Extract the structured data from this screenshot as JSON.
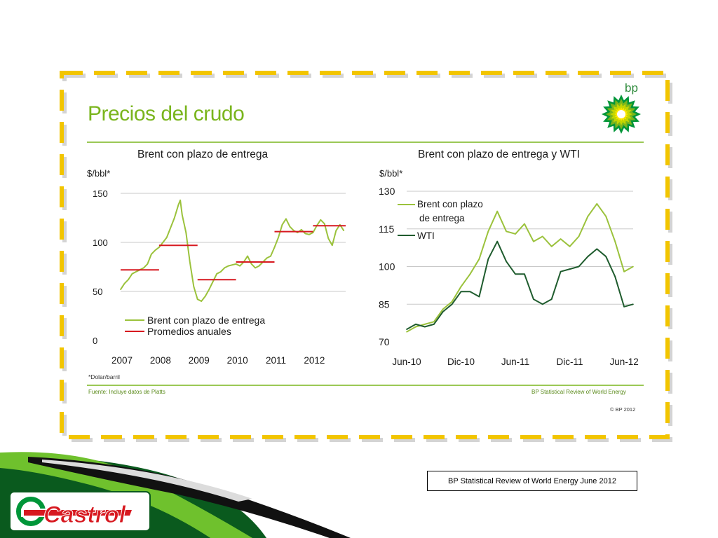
{
  "slide": {
    "title": "Precios del crudo",
    "footnote": "*Dolar/barril",
    "source_left": "Fuente: Incluye datos de Platts",
    "source_right": "BP Statistical Review of World Energy",
    "copyright": "© BP 2012",
    "bp_logo_text": "bp",
    "caption_box": "BP Statistical Review of World Energy June 2012",
    "castrol_logo_text": "Castrol",
    "colors": {
      "accent_green": "#7ab51d",
      "frame_yellow": "#f2c500",
      "castrol_red": "#d71920",
      "castrol_green": "#009639"
    }
  },
  "chart_data": [
    {
      "type": "line",
      "title": "Brent con plazo de entrega",
      "ylabel": "$/bbl*",
      "ylim": [
        0,
        150
      ],
      "yticks": [
        "150",
        "100",
        "50",
        "0"
      ],
      "xticks": [
        "2007",
        "2008",
        "2009",
        "2010",
        "2011",
        "2012"
      ],
      "xlim": [
        2007,
        2012.85
      ],
      "legend_position": "bottom-left",
      "series": [
        {
          "name": "Brent con plazo de entrega",
          "color": "#9bc23c",
          "x": [
            2007.0,
            2007.1,
            2007.2,
            2007.3,
            2007.4,
            2007.5,
            2007.6,
            2007.7,
            2007.8,
            2007.9,
            2008.0,
            2008.1,
            2008.2,
            2008.3,
            2008.4,
            2008.5,
            2008.55,
            2008.6,
            2008.7,
            2008.8,
            2008.9,
            2009.0,
            2009.1,
            2009.2,
            2009.3,
            2009.4,
            2009.5,
            2009.6,
            2009.7,
            2009.8,
            2009.9,
            2010.0,
            2010.1,
            2010.2,
            2010.3,
            2010.4,
            2010.5,
            2010.6,
            2010.7,
            2010.8,
            2010.9,
            2011.0,
            2011.1,
            2011.2,
            2011.3,
            2011.4,
            2011.5,
            2011.6,
            2011.7,
            2011.8,
            2011.9,
            2012.0,
            2012.1,
            2012.2,
            2012.3,
            2012.4,
            2012.5,
            2012.6,
            2012.7,
            2012.8
          ],
          "values": [
            52,
            58,
            62,
            68,
            70,
            72,
            74,
            78,
            88,
            92,
            95,
            100,
            105,
            115,
            125,
            138,
            143,
            128,
            110,
            80,
            55,
            42,
            40,
            45,
            52,
            60,
            68,
            70,
            74,
            76,
            77,
            78,
            76,
            80,
            86,
            78,
            74,
            76,
            80,
            84,
            86,
            95,
            105,
            118,
            124,
            116,
            112,
            110,
            113,
            109,
            108,
            110,
            117,
            123,
            119,
            104,
            97,
            112,
            118,
            112
          ]
        },
        {
          "name": "Promedios anuales",
          "color": "#d71920",
          "type": "step",
          "segments": [
            {
              "year": 2007,
              "value": 72
            },
            {
              "year": 2008,
              "value": 97
            },
            {
              "year": 2009,
              "value": 62
            },
            {
              "year": 2010,
              "value": 80
            },
            {
              "year": 2011,
              "value": 111
            },
            {
              "year": 2012,
              "value": 117
            }
          ]
        }
      ]
    },
    {
      "type": "line",
      "title": "Brent con plazo de entrega y WTI",
      "ylabel": "$/bbl*",
      "ylim": [
        70,
        130
      ],
      "yticks": [
        "130",
        "115",
        "100",
        "85",
        "70"
      ],
      "xticks": [
        "Jun-10",
        "Dic-10",
        "Jun-11",
        "Dic-11",
        "Jun-12"
      ],
      "legend_position": "top-left",
      "series": [
        {
          "name": "Brent con plazo\nde entrega",
          "color": "#9bc23c",
          "x": [
            "2010-06",
            "2010-07",
            "2010-08",
            "2010-09",
            "2010-10",
            "2010-11",
            "2010-12",
            "2011-01",
            "2011-02",
            "2011-03",
            "2011-04",
            "2011-05",
            "2011-06",
            "2011-07",
            "2011-08",
            "2011-09",
            "2011-10",
            "2011-11",
            "2011-12",
            "2012-01",
            "2012-02",
            "2012-03",
            "2012-04",
            "2012-05",
            "2012-06",
            "2012-07"
          ],
          "values": [
            74,
            76,
            77,
            78,
            83,
            86,
            92,
            97,
            103,
            114,
            122,
            114,
            113,
            117,
            110,
            112,
            108,
            111,
            108,
            112,
            120,
            125,
            120,
            110,
            98,
            100
          ]
        },
        {
          "name": "WTI",
          "color": "#1f5c2e",
          "x": [
            "2010-06",
            "2010-07",
            "2010-08",
            "2010-09",
            "2010-10",
            "2010-11",
            "2010-12",
            "2011-01",
            "2011-02",
            "2011-03",
            "2011-04",
            "2011-05",
            "2011-06",
            "2011-07",
            "2011-08",
            "2011-09",
            "2011-10",
            "2011-11",
            "2011-12",
            "2012-01",
            "2012-02",
            "2012-03",
            "2012-04",
            "2012-05",
            "2012-06",
            "2012-07"
          ],
          "values": [
            75,
            77,
            76,
            77,
            82,
            85,
            90,
            90,
            88,
            103,
            110,
            102,
            97,
            97,
            87,
            85,
            87,
            98,
            99,
            100,
            104,
            107,
            104,
            96,
            84,
            85
          ]
        }
      ]
    }
  ]
}
